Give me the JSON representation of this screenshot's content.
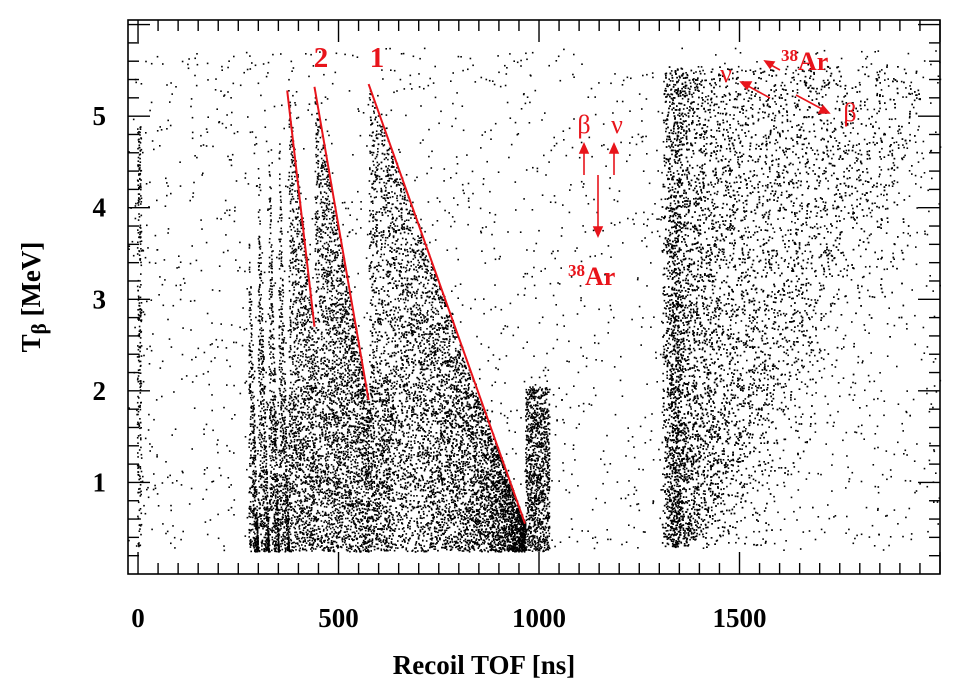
{
  "chart_data": {
    "type": "scatter",
    "xlabel": "Recoil TOF [ns]",
    "ylabel_main": "T",
    "ylabel_sub": "β",
    "ylabel_unit": " [MeV]",
    "xlim": [
      -25,
      2000
    ],
    "ylim": [
      0,
      6.05
    ],
    "x_ticks": [
      0,
      500,
      1000,
      1500
    ],
    "y_ticks": [
      1,
      2,
      3,
      4,
      5
    ],
    "series": [
      {
        "name": "",
        "color": "#000000",
        "regions": [
          {
            "kind": "prompt",
            "x_center": 2,
            "x_width": 10,
            "y_range": [
              0.25,
              4.9
            ]
          },
          {
            "kind": "sawtooth",
            "x_start": 275,
            "x_end": 298,
            "y_max": 4.0
          },
          {
            "kind": "sawtooth",
            "x_start": 298,
            "x_end": 325,
            "y_max": 4.6
          },
          {
            "kind": "sawtooth",
            "x_start": 325,
            "x_end": 350,
            "y_max": 4.9
          },
          {
            "kind": "sawtooth",
            "x_start": 350,
            "x_end": 375,
            "y_max": 5.2
          },
          {
            "kind": "sawtooth",
            "x_start": 375,
            "x_end": 440,
            "y_max": 5.25,
            "y_low": 2.7
          },
          {
            "kind": "sawtooth",
            "x_start": 440,
            "x_end": 575,
            "y_max": 5.3,
            "y_low": 1.9
          },
          {
            "kind": "sawtooth",
            "x_start": 575,
            "x_end": 965,
            "y_max": 5.35,
            "y_low": 0.55
          },
          {
            "kind": "fan",
            "x_start": 1305,
            "x_end": 1950,
            "y_max": 5.55
          }
        ]
      },
      {
        "name": "",
        "color": "#e8141b",
        "lines": [
          {
            "x": [
              372,
              440
            ],
            "y": [
              5.28,
              2.7
            ]
          },
          {
            "x": [
              440,
              575
            ],
            "y": [
              5.32,
              1.9
            ]
          },
          {
            "x": [
              575,
              965
            ],
            "y": [
              5.35,
              0.55
            ]
          }
        ]
      }
    ],
    "annotations": [
      {
        "text": "2",
        "x": 462,
        "y": 5.7,
        "bold": true
      },
      {
        "text": "1",
        "x": 614,
        "y": 5.7,
        "bold": true
      }
    ],
    "decay_diagrams": [
      {
        "labels": [
          "β",
          "ν",
          "38",
          "Ar"
        ],
        "arrangement": "back-to-back"
      },
      {
        "labels": [
          "ν",
          "38",
          "Ar",
          "β"
        ],
        "arrangement": "three-body"
      }
    ],
    "grid": false,
    "legend": "none"
  },
  "colors": {
    "data": "#000000",
    "fit": "#e8141b",
    "frame": "#000000"
  }
}
